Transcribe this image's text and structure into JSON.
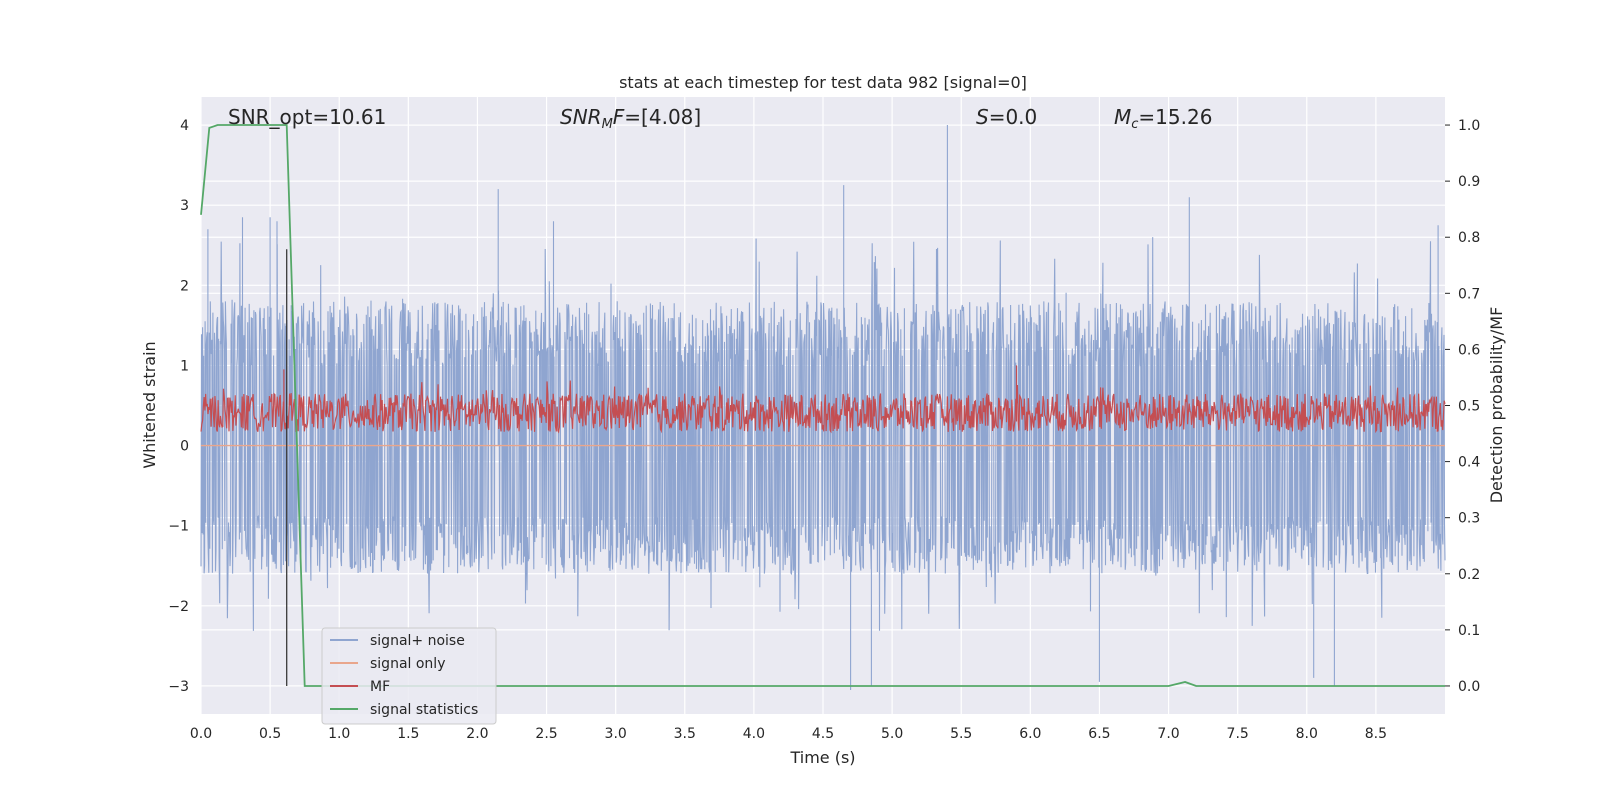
{
  "chart_data": {
    "type": "line",
    "title": "stats at each timestep for test data 982 [signal=0]",
    "xlabel": "Time (s)",
    "ylabel": "Whitened strain",
    "ylabel_right": "Detection probability/MF",
    "xlim": [
      0.0,
      9.0
    ],
    "ylim": [
      -3.35,
      4.35
    ],
    "ylim_right": [
      -0.05,
      1.05
    ],
    "x_ticks": [
      "0.0",
      "0.5",
      "1.0",
      "1.5",
      "2.0",
      "2.5",
      "3.0",
      "3.5",
      "4.0",
      "4.5",
      "5.0",
      "5.5",
      "6.0",
      "6.5",
      "7.0",
      "7.5",
      "8.0",
      "8.5"
    ],
    "y_ticks": [
      "4",
      "3",
      "2",
      "1",
      "0",
      "−1",
      "−2",
      "−3"
    ],
    "y_ticks_right": [
      "1.0",
      "0.9",
      "0.8",
      "0.7",
      "0.6",
      "0.5",
      "0.4",
      "0.3",
      "0.2",
      "0.1",
      "0.0"
    ],
    "grid": true,
    "legend_placement": "lower-left",
    "annotations": {
      "snr_opt": "SNR_opt=10.61",
      "snr_mf": "=[4.08]",
      "snr_mf_symbol": "SNR",
      "snr_mf_sub": "M",
      "snr_mf_tail": "F",
      "s_symbol": "S",
      "s_value": "=0.0",
      "mc_symbol": "M",
      "mc_sub": "c",
      "mc_value": "=15.26"
    },
    "series": [
      {
        "name": "signal+ noise",
        "color": "#8fa5d0",
        "description_band": [
          -1.6,
          1.8
        ],
        "peak_samples": [
          [
            0.05,
            2.7
          ],
          [
            0.3,
            2.85
          ],
          [
            0.5,
            2.85
          ],
          [
            0.55,
            2.8
          ],
          [
            2.15,
            3.2
          ],
          [
            2.55,
            2.8
          ],
          [
            4.65,
            3.25
          ],
          [
            5.4,
            4.0
          ],
          [
            7.15,
            3.1
          ],
          [
            8.95,
            2.75
          ],
          [
            4.7,
            -3.05
          ],
          [
            4.85,
            -3.0
          ],
          [
            6.5,
            -2.95
          ],
          [
            8.05,
            -2.9
          ],
          [
            8.2,
            -3.0
          ]
        ]
      },
      {
        "name": "signal only",
        "color": "#e9a68c",
        "values_constant": 0.0
      },
      {
        "name": "MF",
        "color": "#c44e52",
        "description_band": [
          0.05,
          0.65
        ],
        "peak_samples": [
          [
            0.6,
            0.95
          ],
          [
            5.9,
            1.0
          ]
        ]
      },
      {
        "name": "signal statistics",
        "color": "#55a868",
        "axis": "right",
        "points": [
          [
            0.0,
            0.84
          ],
          [
            0.06,
            0.995
          ],
          [
            0.12,
            1.0
          ],
          [
            0.62,
            1.0
          ],
          [
            0.75,
            0.0
          ],
          [
            7.0,
            0.0
          ],
          [
            7.12,
            0.007
          ],
          [
            7.2,
            0.0
          ],
          [
            9.0,
            0.0
          ]
        ]
      }
    ],
    "vertical_marker": {
      "x": 0.62,
      "color": "#3a3a3a"
    }
  }
}
